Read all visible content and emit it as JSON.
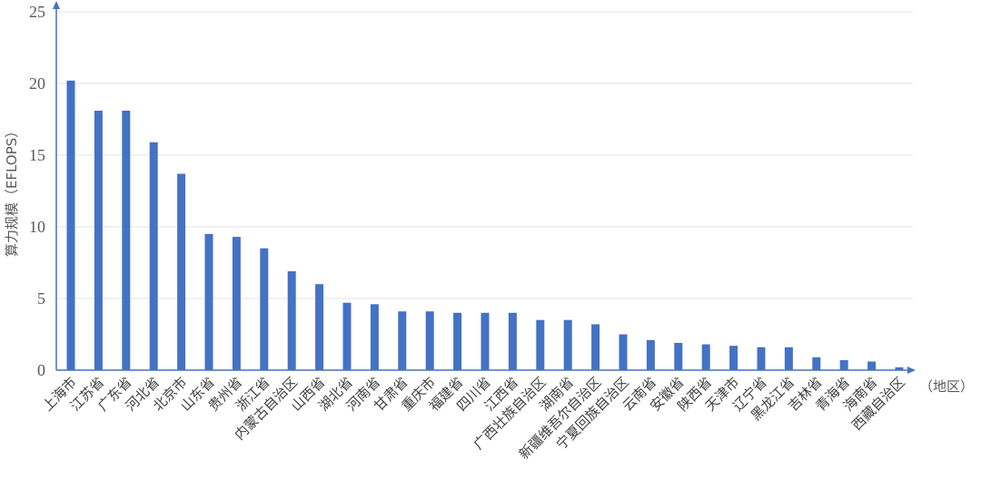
{
  "chart_data": {
    "type": "bar",
    "title": "",
    "xlabel": "（地区）",
    "ylabel": "算力规模（EFLOPS）",
    "ylim": [
      0,
      25
    ],
    "yticks": [
      0,
      5,
      10,
      15,
      20,
      25
    ],
    "grid": true,
    "bar_color": "#4472c4",
    "categories": [
      "上海市",
      "江苏省",
      "广东省",
      "河北省",
      "北京市",
      "山东省",
      "贵州省",
      "浙江省",
      "内蒙古自治区",
      "山西省",
      "湖北省",
      "河南省",
      "甘肃省",
      "重庆市",
      "福建省",
      "四川省",
      "江西省",
      "广西壮族自治区",
      "湖南省",
      "新疆维吾尔自治区",
      "宁夏回族自治区",
      "云南省",
      "安徽省",
      "陕西省",
      "天津市",
      "辽宁省",
      "黑龙江省",
      "吉林省",
      "青海省",
      "海南省",
      "西藏自治区"
    ],
    "values": [
      20.2,
      18.1,
      18.1,
      15.9,
      13.7,
      9.5,
      9.3,
      8.5,
      6.9,
      6.0,
      4.7,
      4.6,
      4.1,
      4.1,
      4.0,
      4.0,
      4.0,
      3.5,
      3.5,
      3.2,
      2.5,
      2.1,
      1.9,
      1.8,
      1.7,
      1.6,
      1.6,
      0.9,
      0.7,
      0.6,
      0.2
    ]
  }
}
